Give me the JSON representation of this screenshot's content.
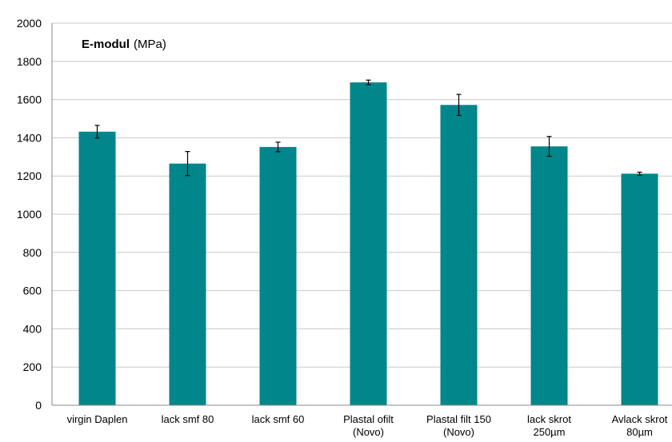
{
  "chart_data": {
    "type": "bar",
    "title": "E-modul",
    "title_unit": "(MPa)",
    "xlabel": "",
    "ylabel": "",
    "ylim": [
      0,
      2000
    ],
    "yticks": [
      "0",
      "200",
      "400",
      "600",
      "800",
      "1000",
      "1200",
      "1400",
      "1600",
      "1800",
      "2000"
    ],
    "grid": true,
    "bar_color": "#00868B",
    "categories": [
      [
        "virgin Daplen"
      ],
      [
        "lack smf 80"
      ],
      [
        "lack smf 60"
      ],
      [
        "Plastal ofilt",
        "(Novo)"
      ],
      [
        "Plastal filt 150",
        "(Novo)"
      ],
      [
        "lack skrot",
        "250µm"
      ],
      [
        "Avlack skrot",
        "80µm"
      ]
    ],
    "values": [
      1432,
      1265,
      1352,
      1690,
      1572,
      1355,
      1212
    ],
    "errors": [
      33,
      63,
      25,
      12,
      55,
      52,
      8
    ]
  }
}
